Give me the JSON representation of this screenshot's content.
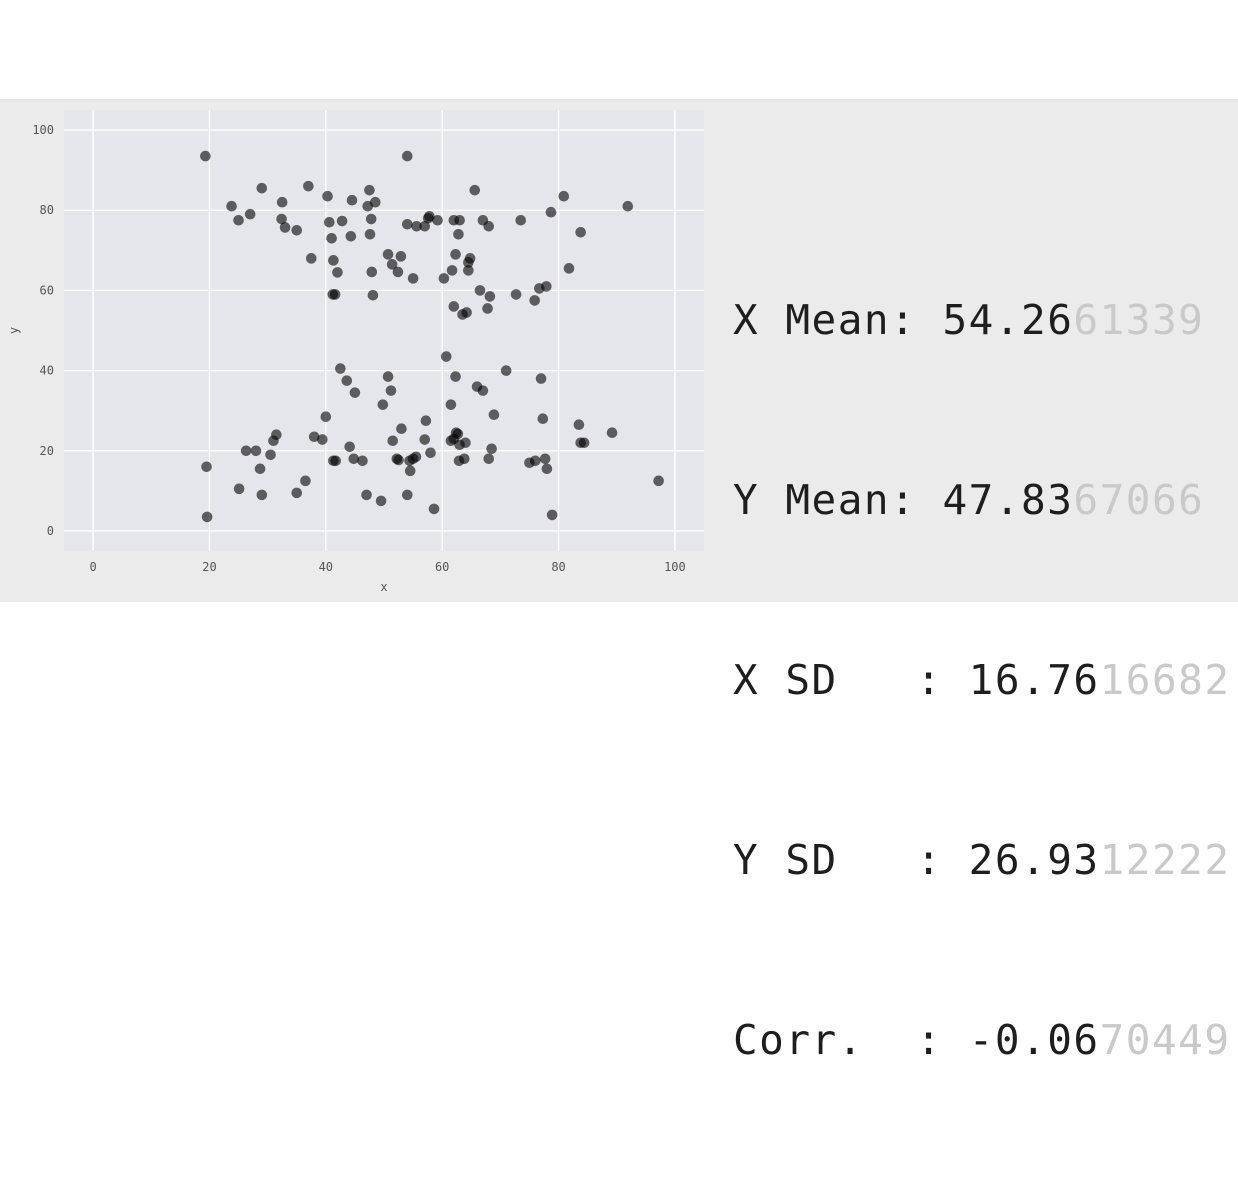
{
  "chart_data": {
    "type": "scatter",
    "xlabel": "x",
    "ylabel": "y",
    "xlim": [
      -5,
      105
    ],
    "ylim": [
      -5,
      105
    ],
    "xticks": [
      0,
      20,
      40,
      60,
      80,
      100
    ],
    "yticks": [
      0,
      20,
      40,
      60,
      80,
      100
    ],
    "grid": true,
    "point_color": "#000000",
    "background": "#e5e5ec",
    "points": [
      [
        19.3,
        93.5
      ],
      [
        54.0,
        93.5
      ],
      [
        23.8,
        81.0
      ],
      [
        25.0,
        77.5
      ],
      [
        27.0,
        79.0
      ],
      [
        29.0,
        85.5
      ],
      [
        32.5,
        82.0
      ],
      [
        32.4,
        77.8
      ],
      [
        33.0,
        75.7
      ],
      [
        35.0,
        75.0
      ],
      [
        37.0,
        86.0
      ],
      [
        40.3,
        83.5
      ],
      [
        40.6,
        77.0
      ],
      [
        41.0,
        73.0
      ],
      [
        42.8,
        77.3
      ],
      [
        44.5,
        82.5
      ],
      [
        44.3,
        73.5
      ],
      [
        47.5,
        85.0
      ],
      [
        47.2,
        81.0
      ],
      [
        48.5,
        82.0
      ],
      [
        47.8,
        77.8
      ],
      [
        47.6,
        74.0
      ],
      [
        54.0,
        76.5
      ],
      [
        55.6,
        76.0
      ],
      [
        57.8,
        78.5
      ],
      [
        57.6,
        78.0
      ],
      [
        57.0,
        76.0
      ],
      [
        59.2,
        77.5
      ],
      [
        62.0,
        77.5
      ],
      [
        63.0,
        77.5
      ],
      [
        62.8,
        74.0
      ],
      [
        65.6,
        85.0
      ],
      [
        67.0,
        77.5
      ],
      [
        68.0,
        76.0
      ],
      [
        73.5,
        77.5
      ],
      [
        78.7,
        79.5
      ],
      [
        80.9,
        83.5
      ],
      [
        83.8,
        74.5
      ],
      [
        91.9,
        81.0
      ],
      [
        37.5,
        68.0
      ],
      [
        41.3,
        67.5
      ],
      [
        42.0,
        64.5
      ],
      [
        41.2,
        59.0
      ],
      [
        41.6,
        59.0
      ],
      [
        47.9,
        64.6
      ],
      [
        48.1,
        58.8
      ],
      [
        50.7,
        69.0
      ],
      [
        51.4,
        66.5
      ],
      [
        52.4,
        64.6
      ],
      [
        52.9,
        68.5
      ],
      [
        55.0,
        63.0
      ],
      [
        60.3,
        63.0
      ],
      [
        61.7,
        65.0
      ],
      [
        62.3,
        69.0
      ],
      [
        62.0,
        56.0
      ],
      [
        63.5,
        54.0
      ],
      [
        64.2,
        54.5
      ],
      [
        64.5,
        65.0
      ],
      [
        64.5,
        67.0
      ],
      [
        64.8,
        68.0
      ],
      [
        66.5,
        60.0
      ],
      [
        67.8,
        55.5
      ],
      [
        68.2,
        58.5
      ],
      [
        72.7,
        59.0
      ],
      [
        75.9,
        57.5
      ],
      [
        76.7,
        60.5
      ],
      [
        77.9,
        61.0
      ],
      [
        81.8,
        65.5
      ],
      [
        60.7,
        43.5
      ],
      [
        42.5,
        40.5
      ],
      [
        43.6,
        37.5
      ],
      [
        45.0,
        34.5
      ],
      [
        50.7,
        38.5
      ],
      [
        51.2,
        35.0
      ],
      [
        49.8,
        31.5
      ],
      [
        40.0,
        28.5
      ],
      [
        38.0,
        23.5
      ],
      [
        39.4,
        22.8
      ],
      [
        44.1,
        21.0
      ],
      [
        44.8,
        18.0
      ],
      [
        46.3,
        17.5
      ],
      [
        41.7,
        17.5
      ],
      [
        41.3,
        17.5
      ],
      [
        51.5,
        22.5
      ],
      [
        52.2,
        18.0
      ],
      [
        53.0,
        25.5
      ],
      [
        52.5,
        17.7
      ],
      [
        54.4,
        17.5
      ],
      [
        55.0,
        18.0
      ],
      [
        55.5,
        18.5
      ],
      [
        54.5,
        15.0
      ],
      [
        54.0,
        9.0
      ],
      [
        49.5,
        7.5
      ],
      [
        57.2,
        27.5
      ],
      [
        57.0,
        22.8
      ],
      [
        58.0,
        19.5
      ],
      [
        58.6,
        5.5
      ],
      [
        61.5,
        31.5
      ],
      [
        62.3,
        38.5
      ],
      [
        61.5,
        22.5
      ],
      [
        62.4,
        24.5
      ],
      [
        62.7,
        24.2
      ],
      [
        62.0,
        23.0
      ],
      [
        63.0,
        21.5
      ],
      [
        64.0,
        22.0
      ],
      [
        62.9,
        17.5
      ],
      [
        63.8,
        18.0
      ],
      [
        66.0,
        36.0
      ],
      [
        67.0,
        35.0
      ],
      [
        68.0,
        18.0
      ],
      [
        68.5,
        20.5
      ],
      [
        68.9,
        29.0
      ],
      [
        71.0,
        40.0
      ],
      [
        75.0,
        17.0
      ],
      [
        76.0,
        17.5
      ],
      [
        77.0,
        38.0
      ],
      [
        77.3,
        28.0
      ],
      [
        77.7,
        18.0
      ],
      [
        78.0,
        15.5
      ],
      [
        78.9,
        4.0
      ],
      [
        83.5,
        26.5
      ],
      [
        83.8,
        22.0
      ],
      [
        84.4,
        22.0
      ],
      [
        89.2,
        24.5
      ],
      [
        97.2,
        12.5
      ],
      [
        19.5,
        16.0
      ],
      [
        19.6,
        3.5
      ],
      [
        25.1,
        10.5
      ],
      [
        26.3,
        20.0
      ],
      [
        28.0,
        20.0
      ],
      [
        28.7,
        15.5
      ],
      [
        29.0,
        9.0
      ],
      [
        30.5,
        19.0
      ],
      [
        31.0,
        22.5
      ],
      [
        31.5,
        24.0
      ],
      [
        35.0,
        9.5
      ],
      [
        36.5,
        12.5
      ],
      [
        47.0,
        9.0
      ]
    ]
  },
  "stats": [
    {
      "label": "X Mean: ",
      "value": "54.26",
      "extra": "61339"
    },
    {
      "label": "Y Mean: ",
      "value": "47.83",
      "extra": "67066"
    },
    {
      "label": "X SD   : ",
      "value": "16.76",
      "extra": "16682"
    },
    {
      "label": "Y SD   : ",
      "value": "26.93",
      "extra": "12222"
    },
    {
      "label": "Corr.  : ",
      "value": "-0.06",
      "extra": "70449"
    }
  ]
}
